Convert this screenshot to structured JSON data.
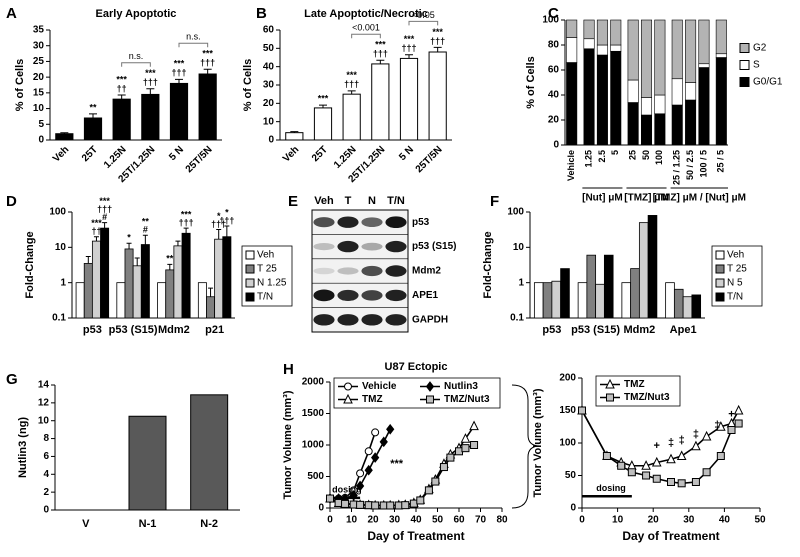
{
  "chart_data": [
    {
      "type": "bar",
      "panel": "A",
      "title": "Early Apoptotic",
      "ylabel": "% of Cells",
      "categories": [
        "Veh",
        "25T",
        "1.25N",
        "25T/1.25N",
        "5 N",
        "25T/5N"
      ],
      "values": [
        2,
        7,
        13,
        14.5,
        18,
        21
      ],
      "errors": [
        0.3,
        1.3,
        1.3,
        1.8,
        1.3,
        1.5
      ],
      "color": "#000000",
      "ylim": [
        0,
        35
      ],
      "yticks": [
        0,
        5,
        10,
        15,
        20,
        25,
        30,
        35
      ],
      "annotations": [
        null,
        [
          "**"
        ],
        [
          "***",
          "††"
        ],
        [
          "***",
          "†††"
        ],
        [
          "***",
          "†††"
        ],
        [
          "***",
          "†††"
        ]
      ],
      "brackets": [
        "n.s.",
        "n.s."
      ]
    },
    {
      "type": "bar",
      "panel": "B",
      "title": "Late Apoptotic/Necrotic",
      "ylabel": "% of Cells",
      "categories": [
        "Veh",
        "25T",
        "1.25N",
        "25T/1.25N",
        "5 N",
        "25T/5N"
      ],
      "values": [
        4,
        17.5,
        25,
        41.5,
        44.5,
        48
      ],
      "errors": [
        0.6,
        1.5,
        1.8,
        2,
        2,
        2.5
      ],
      "color": "#ffffff",
      "ylim": [
        0,
        60
      ],
      "yticks": [
        0,
        10,
        20,
        30,
        40,
        50,
        60
      ],
      "annotations": [
        null,
        [
          "***"
        ],
        [
          "***",
          "†††"
        ],
        [
          "***",
          "†††"
        ],
        [
          "***",
          "†††"
        ],
        [
          "***",
          "†††"
        ]
      ],
      "brackets": [
        "<0.001",
        "<0.05"
      ]
    },
    {
      "type": "stacked",
      "panel": "C",
      "ylabel": "% of Cells",
      "categories": [
        "Vehicle",
        "1.25",
        "2.5",
        "5",
        "25",
        "50",
        "100",
        "25 / 1.25",
        "50 / 2.5",
        "100 / 5",
        "25 / 5"
      ],
      "groups": [
        "[Nut] μM",
        "[TMZ] μM",
        "[TMZ] μM / [Nut] μM"
      ],
      "series": [
        {
          "name": "G0/G1",
          "color": "#000000",
          "values": [
            66,
            77,
            72,
            75,
            34,
            24,
            25,
            32,
            36,
            62,
            70
          ]
        },
        {
          "name": "S",
          "color": "#ffffff",
          "values": [
            20,
            8,
            8,
            5,
            18,
            14,
            15,
            21,
            14,
            3,
            3
          ]
        },
        {
          "name": "G2",
          "color": "#b3b3b3",
          "values": [
            14,
            15,
            20,
            20,
            48,
            62,
            60,
            47,
            50,
            35,
            27
          ]
        }
      ],
      "ylim": [
        0,
        100
      ],
      "yticks": [
        0,
        20,
        40,
        60,
        80,
        100
      ]
    },
    {
      "type": "grouped",
      "panel": "D",
      "ylabel": "Fold-Change",
      "log": true,
      "categories": [
        "p53",
        "p53 (S15)",
        "Mdm2",
        "p21"
      ],
      "series": [
        {
          "name": "Veh",
          "color": "#ffffff",
          "values": [
            1,
            1,
            1,
            1
          ]
        },
        {
          "name": "T 25",
          "color": "#808080",
          "values": [
            3.5,
            9,
            2.3,
            0.4
          ],
          "errors": [
            2,
            4,
            1,
            0.3
          ],
          "annotations": [
            null,
            [
              "*"
            ],
            [
              "**"
            ],
            null
          ]
        },
        {
          "name": "N 1.25",
          "color": "#d0d0d0",
          "values": [
            15,
            3,
            11,
            17
          ],
          "errors": [
            5,
            2,
            4,
            15
          ],
          "annotations": [
            [
              "***",
              "††"
            ],
            null,
            null,
            [
              "*",
              "†††"
            ]
          ]
        },
        {
          "name": "T/N",
          "color": "#000000",
          "values": [
            35,
            12,
            25,
            20
          ],
          "errors": [
            15,
            10,
            10,
            20
          ],
          "annotations": [
            [
              "***",
              "†††",
              "#"
            ],
            [
              "**",
              "#"
            ],
            [
              "***",
              "†††"
            ],
            [
              "*",
              "†††"
            ]
          ]
        }
      ],
      "ylim": [
        0.1,
        100
      ],
      "yticks": [
        0.1,
        1,
        10,
        100
      ]
    },
    {
      "type": "blot",
      "panel": "E",
      "lanes": [
        "Veh",
        "T",
        "N",
        "T/N"
      ],
      "bands": [
        "p53",
        "p53 (S15)",
        "Mdm2",
        "APE1",
        "GAPDH"
      ]
    },
    {
      "type": "grouped",
      "panel": "F",
      "ylabel": "Fold-Change",
      "log": true,
      "categories": [
        "p53",
        "p53 (S15)",
        "Mdm2",
        "Ape1"
      ],
      "series": [
        {
          "name": "Veh",
          "color": "#ffffff",
          "values": [
            1,
            1,
            1,
            1
          ]
        },
        {
          "name": "T 25",
          "color": "#808080",
          "values": [
            1,
            6,
            2.5,
            0.65
          ]
        },
        {
          "name": "N 5",
          "color": "#d0d0d0",
          "values": [
            1.1,
            0.9,
            50,
            0.4
          ]
        },
        {
          "name": "T/N",
          "color": "#000000",
          "values": [
            2.5,
            6,
            80,
            0.45
          ]
        }
      ],
      "ylim": [
        0.1,
        100
      ],
      "yticks": [
        0.1,
        1,
        10,
        100
      ]
    },
    {
      "type": "bar",
      "panel": "G",
      "ylabel": "Nutlin3 (ng)",
      "categories": [
        "V",
        "N-1",
        "N-2"
      ],
      "values": [
        0,
        10.5,
        12.9
      ],
      "color": "#595959",
      "ylim": [
        0,
        14
      ],
      "yticks": [
        0,
        2,
        4,
        6,
        8,
        10,
        12,
        14
      ]
    },
    {
      "type": "line",
      "panel": "H",
      "title": "U87 Ectopic",
      "xlabel": "Day of Treatment",
      "ylabel": "Tumor Volume (mm³)",
      "xlim": [
        0,
        80
      ],
      "xticks": [
        0,
        10,
        20,
        30,
        40,
        50,
        60,
        70,
        80
      ],
      "ylim": [
        0,
        2000
      ],
      "yticks": [
        0,
        500,
        1000,
        1500,
        2000
      ],
      "series": [
        {
          "name": "Vehicle",
          "marker": "circle",
          "color": "#ffffff",
          "x": [
            0,
            4,
            7,
            11,
            14,
            18,
            21
          ],
          "y": [
            150,
            150,
            160,
            280,
            550,
            900,
            1200
          ]
        },
        {
          "name": "Nutlin3",
          "marker": "diamond",
          "color": "#000000",
          "x": [
            0,
            4,
            7,
            11,
            14,
            18,
            21,
            25,
            28
          ],
          "y": [
            150,
            150,
            150,
            200,
            350,
            600,
            800,
            1050,
            1250
          ]
        },
        {
          "name": "TMZ",
          "marker": "triangle",
          "color": "#ffffff",
          "x": [
            0,
            4,
            7,
            11,
            14,
            18,
            21,
            25,
            28,
            32,
            35,
            39,
            42,
            46,
            49,
            53,
            56,
            60,
            63,
            67
          ],
          "y": [
            150,
            80,
            70,
            60,
            50,
            45,
            40,
            40,
            40,
            45,
            50,
            80,
            130,
            300,
            450,
            700,
            850,
            950,
            1100,
            1300
          ]
        },
        {
          "name": "TMZ/Nut3",
          "marker": "square",
          "color": "#bfbfbf",
          "x": [
            0,
            4,
            7,
            11,
            14,
            18,
            21,
            25,
            28,
            32,
            35,
            39,
            42,
            46,
            49,
            53,
            56,
            60,
            63,
            67
          ],
          "y": [
            150,
            80,
            65,
            55,
            50,
            45,
            40,
            40,
            40,
            40,
            45,
            70,
            120,
            280,
            420,
            650,
            800,
            900,
            950,
            1000
          ]
        }
      ],
      "annotations": [
        "dosing",
        "***"
      ]
    },
    {
      "type": "line",
      "xlabel": "Day of Treatment",
      "ylabel": "Tumor Volume (mm³)",
      "xlim": [
        0,
        50
      ],
      "xticks": [
        0,
        10,
        20,
        30,
        40,
        50
      ],
      "ylim": [
        0,
        200
      ],
      "yticks": [
        0,
        50,
        100,
        150,
        200
      ],
      "series": [
        {
          "name": "TMZ",
          "marker": "triangle",
          "color": "#ffffff",
          "x": [
            0,
            7,
            11,
            14,
            18,
            21,
            25,
            28,
            32,
            35,
            39,
            42,
            44
          ],
          "y": [
            150,
            80,
            70,
            65,
            65,
            70,
            75,
            80,
            95,
            110,
            125,
            130,
            150
          ]
        },
        {
          "name": "TMZ/Nut3",
          "marker": "square",
          "color": "#bfbfbf",
          "x": [
            0,
            7,
            11,
            14,
            18,
            21,
            25,
            28,
            32,
            35,
            39,
            42,
            44
          ],
          "y": [
            150,
            80,
            65,
            55,
            50,
            45,
            40,
            38,
            40,
            55,
            80,
            120,
            130
          ]
        }
      ],
      "annotations": [
        "dosing",
        "+",
        "‡",
        "‡",
        "‡",
        "‡",
        "+"
      ]
    }
  ]
}
